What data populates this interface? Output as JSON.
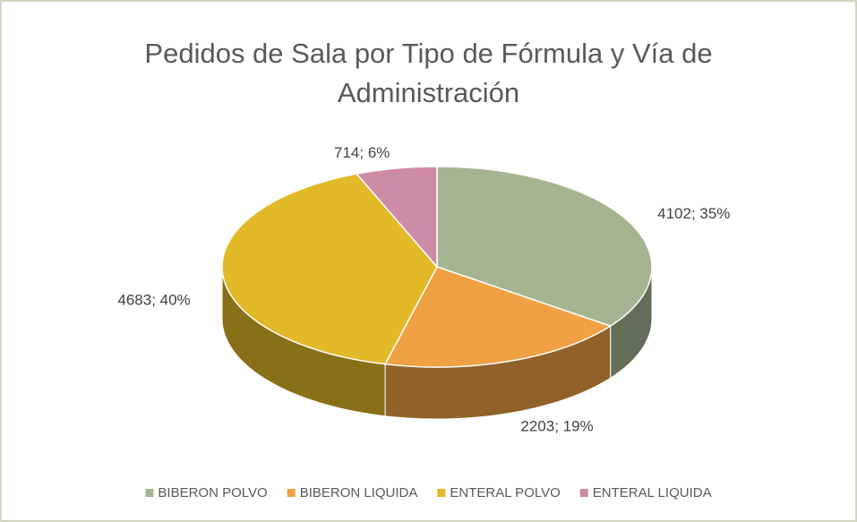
{
  "chart_data": {
    "type": "pie",
    "title": "Pedidos de Sala por Tipo de Fórmula y Vía de Administración",
    "categories": [
      "BIBERON POLVO",
      "BIBERON LIQUIDA",
      "ENTERAL POLVO",
      "ENTERAL LIQUIDA"
    ],
    "values": [
      4102,
      2203,
      4683,
      714
    ],
    "value_labels": [
      "4102; 35%",
      "2203; 19%",
      "4683; 40%",
      "714; 6%"
    ],
    "colors": [
      "#a5b592",
      "#f0a143",
      "#e2b928",
      "#cd8ca5"
    ],
    "legend": "bottom"
  }
}
